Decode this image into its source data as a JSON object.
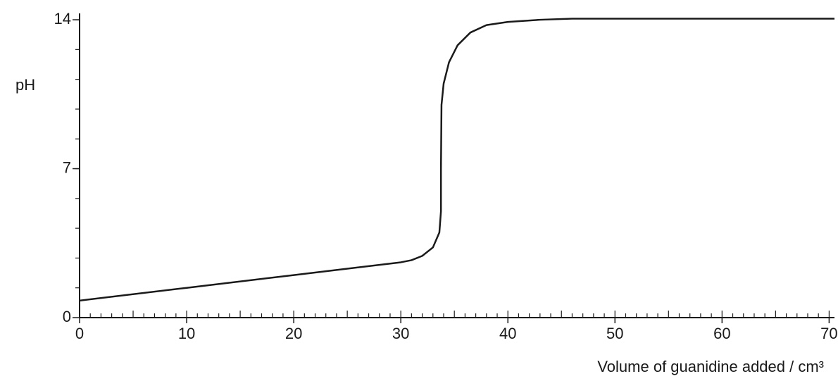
{
  "chart_data": {
    "type": "line",
    "y_label": "pH",
    "x_label": "Volume of guanidine added / cm³",
    "xlim": [
      0,
      70.5
    ],
    "xticks": [
      0,
      10,
      20,
      30,
      40,
      50,
      60,
      70
    ],
    "x_minor_step": 1,
    "ylim": [
      0,
      14.3
    ],
    "yticks": [
      0,
      7,
      14
    ],
    "y_minor_step": 1.4,
    "color": "#1a1a1a",
    "x": [
      0,
      10,
      20,
      30,
      31,
      32,
      33,
      33.6,
      33.75,
      33.75,
      33.8,
      34,
      34.5,
      35.3,
      36.5,
      38,
      40,
      43,
      46,
      70.5
    ],
    "values": [
      0.8,
      1.4,
      2.0,
      2.6,
      2.7,
      2.9,
      3.3,
      4.0,
      5.0,
      7.0,
      10.0,
      11.0,
      12.0,
      12.8,
      13.4,
      13.75,
      13.9,
      14.0,
      14.05,
      14.05
    ]
  }
}
